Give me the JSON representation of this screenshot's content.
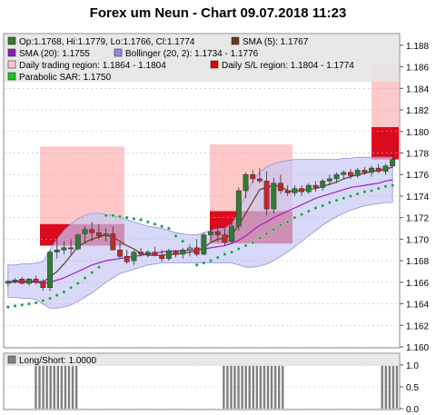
{
  "chart_data": [
    {
      "type": "candlestick",
      "title": "Forex um Neun - Chart 09.07.2018 11:23",
      "ylim": [
        1.16,
        1.189
      ],
      "y_ticks": [
        "1.160",
        "1.162",
        "1.164",
        "1.166",
        "1.168",
        "1.170",
        "1.172",
        "1.174",
        "1.176",
        "1.178",
        "1.180",
        "1.182",
        "1.184",
        "1.186",
        "1.188"
      ],
      "legend": [
        {
          "label": "Op:1.1768, Hi:1.1779, Lo:1.1766, Cl:1.1774",
          "swatch": "#2e7d32"
        },
        {
          "label": "SMA (5): 1.1767",
          "swatch": "#6b3a1f"
        },
        {
          "label": "SMA (20): 1.1755",
          "swatch": "#8b1fb4"
        },
        {
          "label": "Bollinger (20, 2): 1.1734 - 1.1776",
          "swatch": "#8f8fe0"
        },
        {
          "label": "Daily trading region: 1.1864 - 1.1804",
          "swatch": "#ffc8c8"
        },
        {
          "label": "Daily S/L region: 1.1804 - 1.1774",
          "swatch": "#e00000"
        },
        {
          "label": "Parabolic SAR: 1.1750",
          "swatch": "#19c419"
        }
      ],
      "colors": {
        "up": "#2e7d32",
        "down": "#c62828",
        "trading_region": "#ffc8c8",
        "sl_region": "#dc0a1e",
        "bollinger": "#c8c8f5",
        "sma5": "#6b3a1f",
        "sma20": "#a020c8",
        "sar": "#1aa04a"
      },
      "daily_regions": [
        {
          "x_start": 44,
          "x_end": 137,
          "trading": [
            1.1714,
            1.1786
          ],
          "sl": [
            1.1694,
            1.1714
          ]
        },
        {
          "x_start": 231,
          "x_end": 322,
          "trading": [
            1.1726,
            1.1788
          ],
          "sl": [
            1.1696,
            1.1726
          ]
        },
        {
          "x_start": 409,
          "x_end": 439,
          "trading": [
            1.1804,
            1.1864
          ],
          "sl": [
            1.1774,
            1.1804
          ]
        }
      ],
      "candles": [
        {
          "o": 1.1659,
          "h": 1.1662,
          "l": 1.1656,
          "c": 1.1661
        },
        {
          "o": 1.1661,
          "h": 1.1664,
          "l": 1.1659,
          "c": 1.1662
        },
        {
          "o": 1.1663,
          "h": 1.1665,
          "l": 1.1658,
          "c": 1.1659
        },
        {
          "o": 1.1659,
          "h": 1.1664,
          "l": 1.1657,
          "c": 1.1663
        },
        {
          "o": 1.1663,
          "h": 1.1666,
          "l": 1.1658,
          "c": 1.166
        },
        {
          "o": 1.1661,
          "h": 1.1663,
          "l": 1.1652,
          "c": 1.1655
        },
        {
          "o": 1.1655,
          "h": 1.169,
          "l": 1.1652,
          "c": 1.1688
        },
        {
          "o": 1.1688,
          "h": 1.1702,
          "l": 1.1682,
          "c": 1.169
        },
        {
          "o": 1.169,
          "h": 1.1698,
          "l": 1.1686,
          "c": 1.1692
        },
        {
          "o": 1.1692,
          "h": 1.17,
          "l": 1.1686,
          "c": 1.1691
        },
        {
          "o": 1.1691,
          "h": 1.1705,
          "l": 1.169,
          "c": 1.1704
        },
        {
          "o": 1.1705,
          "h": 1.1712,
          "l": 1.1696,
          "c": 1.1709
        },
        {
          "o": 1.1709,
          "h": 1.1716,
          "l": 1.1698,
          "c": 1.1706
        },
        {
          "o": 1.1706,
          "h": 1.1714,
          "l": 1.17,
          "c": 1.1703
        },
        {
          "o": 1.1703,
          "h": 1.171,
          "l": 1.1698,
          "c": 1.1705
        },
        {
          "o": 1.1705,
          "h": 1.1712,
          "l": 1.169,
          "c": 1.169
        },
        {
          "o": 1.169,
          "h": 1.1697,
          "l": 1.1682,
          "c": 1.1684
        },
        {
          "o": 1.1684,
          "h": 1.169,
          "l": 1.1677,
          "c": 1.1679
        },
        {
          "o": 1.168,
          "h": 1.169,
          "l": 1.1676,
          "c": 1.1688
        },
        {
          "o": 1.1688,
          "h": 1.1692,
          "l": 1.1684,
          "c": 1.1686
        },
        {
          "o": 1.1686,
          "h": 1.169,
          "l": 1.1683,
          "c": 1.1688
        },
        {
          "o": 1.1688,
          "h": 1.1693,
          "l": 1.1684,
          "c": 1.1685
        },
        {
          "o": 1.1685,
          "h": 1.169,
          "l": 1.1679,
          "c": 1.1682
        },
        {
          "o": 1.1682,
          "h": 1.1691,
          "l": 1.168,
          "c": 1.1689
        },
        {
          "o": 1.1689,
          "h": 1.169,
          "l": 1.1683,
          "c": 1.1686
        },
        {
          "o": 1.1686,
          "h": 1.1692,
          "l": 1.1682,
          "c": 1.169
        },
        {
          "o": 1.169,
          "h": 1.1695,
          "l": 1.1684,
          "c": 1.1692
        },
        {
          "o": 1.1692,
          "h": 1.17,
          "l": 1.1684,
          "c": 1.1686
        },
        {
          "o": 1.1686,
          "h": 1.1706,
          "l": 1.1685,
          "c": 1.1704
        },
        {
          "o": 1.1704,
          "h": 1.1712,
          "l": 1.1698,
          "c": 1.1707
        },
        {
          "o": 1.1707,
          "h": 1.1712,
          "l": 1.1698,
          "c": 1.1704
        },
        {
          "o": 1.1704,
          "h": 1.171,
          "l": 1.1694,
          "c": 1.1697
        },
        {
          "o": 1.1698,
          "h": 1.1715,
          "l": 1.1696,
          "c": 1.1712
        },
        {
          "o": 1.1712,
          "h": 1.1748,
          "l": 1.1708,
          "c": 1.1745
        },
        {
          "o": 1.1745,
          "h": 1.1762,
          "l": 1.1738,
          "c": 1.176
        },
        {
          "o": 1.176,
          "h": 1.1764,
          "l": 1.1752,
          "c": 1.1756
        },
        {
          "o": 1.1756,
          "h": 1.1766,
          "l": 1.1752,
          "c": 1.1754
        },
        {
          "o": 1.1754,
          "h": 1.1763,
          "l": 1.1722,
          "c": 1.1728
        },
        {
          "o": 1.1728,
          "h": 1.1757,
          "l": 1.1724,
          "c": 1.1752
        },
        {
          "o": 1.1752,
          "h": 1.176,
          "l": 1.1742,
          "c": 1.1745
        },
        {
          "o": 1.1745,
          "h": 1.175,
          "l": 1.174,
          "c": 1.1743
        },
        {
          "o": 1.1743,
          "h": 1.175,
          "l": 1.174,
          "c": 1.1747
        },
        {
          "o": 1.1747,
          "h": 1.175,
          "l": 1.174,
          "c": 1.1744
        },
        {
          "o": 1.1744,
          "h": 1.1752,
          "l": 1.1742,
          "c": 1.175
        },
        {
          "o": 1.175,
          "h": 1.1754,
          "l": 1.1744,
          "c": 1.1748
        },
        {
          "o": 1.1748,
          "h": 1.1756,
          "l": 1.1745,
          "c": 1.1754
        },
        {
          "o": 1.1754,
          "h": 1.176,
          "l": 1.175,
          "c": 1.1756
        },
        {
          "o": 1.1756,
          "h": 1.1762,
          "l": 1.1752,
          "c": 1.176
        },
        {
          "o": 1.176,
          "h": 1.1764,
          "l": 1.1756,
          "c": 1.1762
        },
        {
          "o": 1.1762,
          "h": 1.1765,
          "l": 1.1756,
          "c": 1.1759
        },
        {
          "o": 1.1759,
          "h": 1.1766,
          "l": 1.1757,
          "c": 1.1764
        },
        {
          "o": 1.1764,
          "h": 1.1767,
          "l": 1.176,
          "c": 1.1762
        },
        {
          "o": 1.1762,
          "h": 1.1768,
          "l": 1.1758,
          "c": 1.1766
        },
        {
          "o": 1.1766,
          "h": 1.177,
          "l": 1.1761,
          "c": 1.1763
        },
        {
          "o": 1.1763,
          "h": 1.177,
          "l": 1.176,
          "c": 1.1768
        },
        {
          "o": 1.1768,
          "h": 1.1779,
          "l": 1.1766,
          "c": 1.1774
        }
      ],
      "bollinger_upper": [
        1.1676,
        1.1676,
        1.1677,
        1.1677,
        1.1678,
        1.1679,
        1.169,
        1.17,
        1.1708,
        1.1714,
        1.1719,
        1.1722,
        1.1724,
        1.1724,
        1.1723,
        1.1722,
        1.172,
        1.1718,
        1.1716,
        1.1714,
        1.1712,
        1.1711,
        1.171,
        1.1708,
        1.1706,
        1.1705,
        1.1704,
        1.1704,
        1.1706,
        1.1708,
        1.171,
        1.171,
        1.1714,
        1.1725,
        1.1742,
        1.1754,
        1.1762,
        1.1767,
        1.177,
        1.1772,
        1.1773,
        1.1774,
        1.1774,
        1.1774,
        1.1774,
        1.1774,
        1.1774,
        1.1774,
        1.1775,
        1.1775,
        1.1776,
        1.1776,
        1.1776,
        1.1776,
        1.1776,
        1.1776
      ],
      "bollinger_lower": [
        1.1646,
        1.1646,
        1.1645,
        1.1645,
        1.1644,
        1.164,
        1.1636,
        1.1636,
        1.1637,
        1.1639,
        1.1642,
        1.1646,
        1.165,
        1.1655,
        1.166,
        1.1664,
        1.1668,
        1.167,
        1.1672,
        1.1674,
        1.1676,
        1.1677,
        1.1678,
        1.1678,
        1.1678,
        1.1678,
        1.1678,
        1.1678,
        1.1678,
        1.1678,
        1.1678,
        1.1678,
        1.1678,
        1.1676,
        1.1674,
        1.1674,
        1.1675,
        1.1677,
        1.168,
        1.1684,
        1.1688,
        1.1693,
        1.1698,
        1.1703,
        1.1708,
        1.1713,
        1.1717,
        1.1721,
        1.1724,
        1.1727,
        1.1729,
        1.1731,
        1.1732,
        1.1733,
        1.1734,
        1.1734
      ],
      "sma5": [
        1.166,
        1.1661,
        1.1661,
        1.1661,
        1.1661,
        1.166,
        1.1665,
        1.167,
        1.1677,
        1.1685,
        1.1693,
        1.1697,
        1.17,
        1.1702,
        1.1704,
        1.1702,
        1.1698,
        1.1694,
        1.1691,
        1.1687,
        1.1685,
        1.1685,
        1.1685,
        1.1686,
        1.1686,
        1.1687,
        1.1688,
        1.1689,
        1.1692,
        1.1697,
        1.17,
        1.1701,
        1.1704,
        1.1713,
        1.1724,
        1.1735,
        1.1746,
        1.1748,
        1.175,
        1.1749,
        1.1745,
        1.1744,
        1.1746,
        1.1746,
        1.1747,
        1.1749,
        1.1751,
        1.1753,
        1.1756,
        1.1758,
        1.176,
        1.1761,
        1.1763,
        1.1764,
        1.1765,
        1.1767
      ],
      "sma20": [
        1.166,
        1.166,
        1.166,
        1.166,
        1.166,
        1.1659,
        1.166,
        1.1662,
        1.1664,
        1.1667,
        1.167,
        1.1673,
        1.1676,
        1.1678,
        1.168,
        1.1681,
        1.1682,
        1.1683,
        1.1684,
        1.1685,
        1.1686,
        1.1687,
        1.1688,
        1.1689,
        1.1689,
        1.1689,
        1.169,
        1.169,
        1.1691,
        1.1692,
        1.1693,
        1.1694,
        1.1696,
        1.1699,
        1.1703,
        1.1708,
        1.1713,
        1.1716,
        1.172,
        1.1723,
        1.1726,
        1.1729,
        1.1732,
        1.1735,
        1.1738,
        1.174,
        1.1742,
        1.1744,
        1.1746,
        1.1748,
        1.1749,
        1.175,
        1.1751,
        1.1752,
        1.1754,
        1.1755
      ],
      "parabolic_sar": [
        1.1637,
        1.1638,
        1.1639,
        1.164,
        1.1641,
        1.1643,
        1.1645,
        1.1648,
        1.1651,
        1.1655,
        1.1659,
        1.1664,
        1.1669,
        1.1674,
        1.1722,
        1.1722,
        1.1721,
        1.172,
        1.1719,
        1.1718,
        1.1716,
        1.1714,
        1.1712,
        1.171,
        1.1703,
        1.1698,
        1.1692,
        1.1676,
        1.1678,
        1.168,
        1.1683,
        1.1686,
        1.1688,
        1.1691,
        1.1694,
        1.1697,
        1.1701,
        1.1705,
        1.1709,
        1.1713,
        1.1716,
        1.172,
        1.1723,
        1.1726,
        1.1729,
        1.1731,
        1.1734,
        1.1736,
        1.1738,
        1.174,
        1.1742,
        1.1744,
        1.1745,
        1.1747,
        1.1749,
        1.175
      ]
    },
    {
      "type": "bar",
      "legend": [
        {
          "label": "Long/Short: 1.0000",
          "swatch": "#808080"
        }
      ],
      "ylim": [
        0,
        1
      ],
      "y_ticks": [
        "0.0",
        "0.5",
        "1.0"
      ],
      "values": [
        0,
        0,
        0,
        0,
        0,
        0,
        0,
        0,
        1,
        1,
        1,
        1,
        1,
        1,
        1,
        1,
        1,
        1,
        1,
        1,
        0,
        0,
        0,
        0,
        0,
        0,
        0,
        0,
        0,
        0,
        0,
        0,
        0,
        0,
        0,
        0,
        0,
        0,
        0,
        0,
        0,
        0,
        0,
        0,
        0,
        0,
        0,
        0,
        0,
        0,
        0,
        0,
        0,
        0,
        0,
        0,
        0,
        0,
        0,
        1,
        1,
        1,
        1,
        1,
        1,
        1,
        1,
        1,
        1,
        1,
        1,
        1,
        1,
        1,
        1,
        1,
        0,
        0,
        0,
        0,
        0,
        0,
        0,
        0,
        0,
        0,
        0,
        0,
        0,
        0,
        0,
        0,
        0,
        0,
        0,
        0,
        0,
        0,
        0,
        0,
        0,
        0,
        1,
        1,
        1,
        1,
        1
      ],
      "color": "#808080"
    }
  ]
}
